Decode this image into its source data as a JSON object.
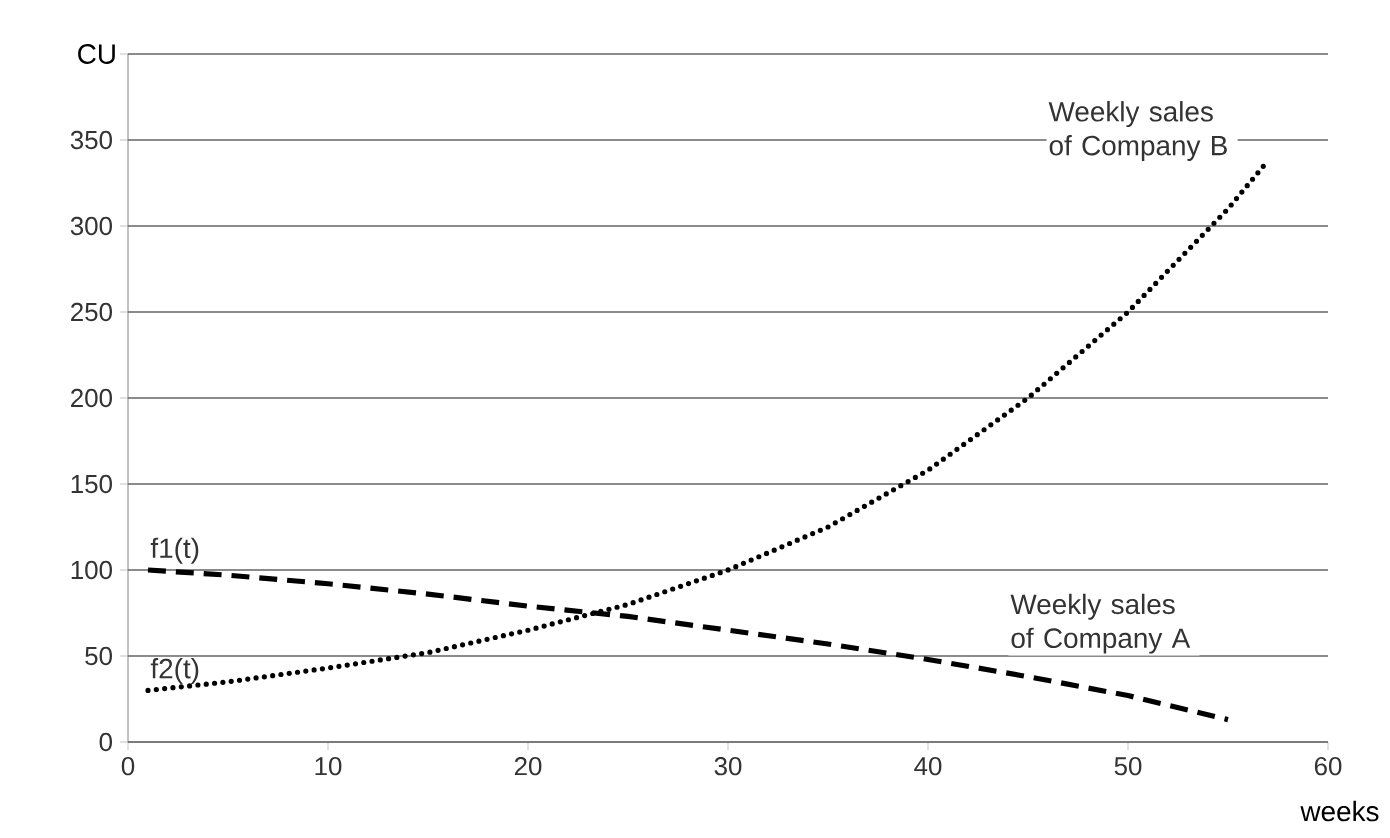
{
  "chart_data": {
    "type": "line",
    "xlabel": "weeks",
    "ylabel": "CU",
    "xlim": [
      0,
      60
    ],
    "xticks": [
      0,
      10,
      20,
      30,
      40,
      50,
      60
    ],
    "ylim": [
      0,
      400
    ],
    "yticks": [
      0,
      50,
      100,
      150,
      200,
      250,
      300,
      350,
      {
        "value": 400,
        "label": null
      }
    ],
    "grid": "y",
    "marker": "none",
    "series": [
      {
        "name": "Weekly sales of Company A",
        "color": "#000000",
        "line_style": "dashed",
        "x": [
          1,
          5,
          10,
          15,
          20,
          25,
          30,
          35,
          40,
          45,
          50,
          55
        ],
        "values": [
          100,
          97,
          92,
          86,
          79,
          73,
          65,
          57,
          48,
          38,
          27,
          13
        ]
      },
      {
        "name": "Weekly sales of Company B",
        "color": "#000000",
        "line_style": "dotted",
        "x": [
          1,
          5,
          10,
          15,
          20,
          25,
          30,
          35,
          40,
          45,
          50,
          55,
          57
        ],
        "values": [
          30,
          35,
          43,
          52,
          65,
          80,
          100,
          125,
          158,
          200,
          250,
          310,
          338
        ]
      }
    ],
    "annotations": [
      {
        "text": "f1(t)",
        "x": 1,
        "y": 100
      },
      {
        "text": "f2(t)",
        "x": 1,
        "y": 30
      }
    ]
  }
}
